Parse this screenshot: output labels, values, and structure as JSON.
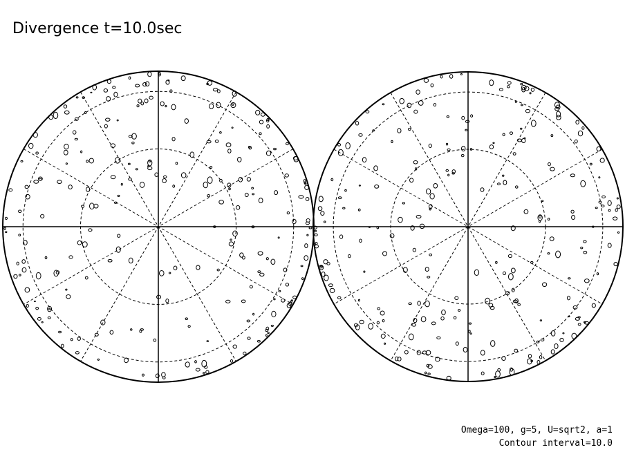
{
  "header": {
    "title": "Divergence t=10.0sec"
  },
  "footer": {
    "lines": [
      "Omega=100, g=5, U=sqrt2, a=1",
      "Contour interval=10.0"
    ]
  }
}
